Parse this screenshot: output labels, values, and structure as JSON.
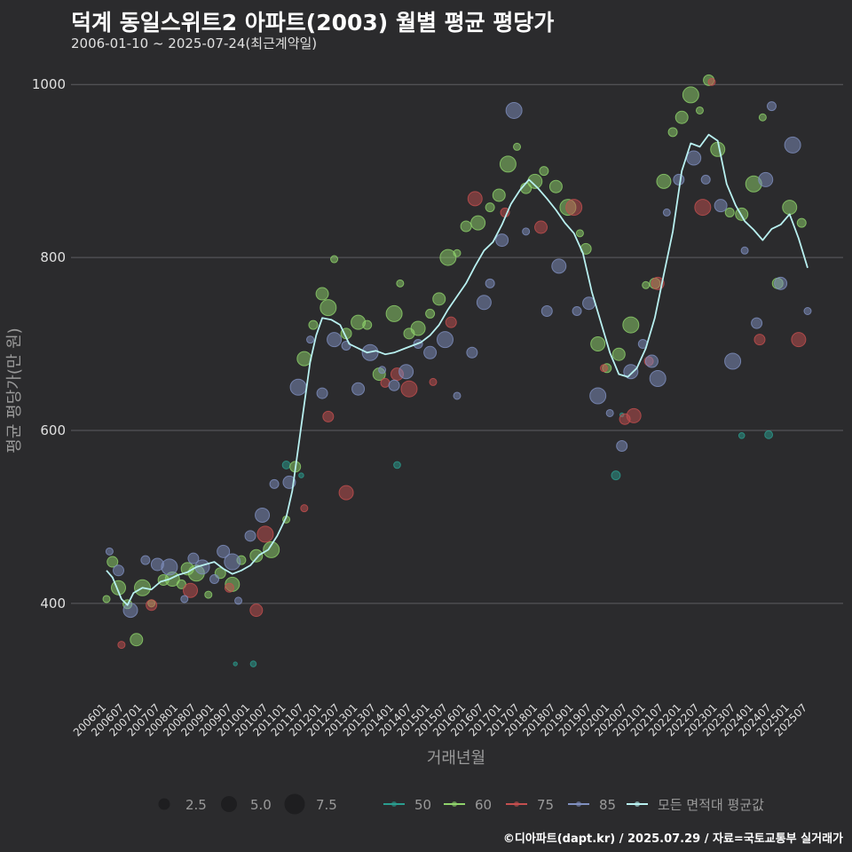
{
  "header": {
    "title": "덕계 동일스위트2 아파트(2003) 월별 평균 평당가",
    "subtitle": "2006-01-10 ~ 2025-07-24(최근계약일)"
  },
  "footer": {
    "credit": "©디아파트(dapt.kr) / 2025.07.29 / 자료=국토교통부 실거래가"
  },
  "colors": {
    "background": "#2b2b2d",
    "grid": "#5e5e62",
    "avg_line": "#b8f0f0",
    "s50": "#2a9d8f",
    "s60": "#8fd36b",
    "s75": "#c44f4f",
    "s85": "#8090c0"
  },
  "chart_data": {
    "type": "scatter",
    "title": "덕계 동일스위트2 아파트(2003) 월별 평균 평당가",
    "subtitle": "2006-01-10 ~ 2025-07-24(최근계약일)",
    "xlabel": "거래년월",
    "ylabel": "평균 평당가(만 원)",
    "ylim": [
      290,
      1030
    ],
    "yticks": [
      400,
      600,
      800,
      1000
    ],
    "xlim": [
      "2006-01",
      "2025-07"
    ],
    "xticks": [
      "200601",
      "200607",
      "200701",
      "200707",
      "200801",
      "200807",
      "200901",
      "200907",
      "201001",
      "201007",
      "201101",
      "201107",
      "201201",
      "201207",
      "201301",
      "201307",
      "201401",
      "201407",
      "201501",
      "201507",
      "201601",
      "201607",
      "201701",
      "201707",
      "201801",
      "201807",
      "201901",
      "201907",
      "202001",
      "202007",
      "202101",
      "202107",
      "202201",
      "202207",
      "202301",
      "202307",
      "202401",
      "202407",
      "202501",
      "202507"
    ],
    "grid": "horizontal",
    "size_legend": {
      "values": [
        "2.5",
        "5.0",
        "7.5"
      ]
    },
    "legend": {
      "position": "bottom",
      "items": [
        "50",
        "60",
        "75",
        "85",
        "모든 면적대 평균값"
      ]
    },
    "average_line": {
      "name": "모든 면적대 평균값",
      "points": [
        [
          "2006-01",
          438
        ],
        [
          "2006-03",
          430
        ],
        [
          "2006-06",
          405
        ],
        [
          "2006-08",
          398
        ],
        [
          "2006-10",
          412
        ],
        [
          "2007-01",
          418
        ],
        [
          "2007-04",
          416
        ],
        [
          "2007-07",
          425
        ],
        [
          "2007-10",
          428
        ],
        [
          "2008-01",
          433
        ],
        [
          "2008-04",
          436
        ],
        [
          "2008-07",
          442
        ],
        [
          "2008-10",
          445
        ],
        [
          "2009-01",
          448
        ],
        [
          "2009-04",
          440
        ],
        [
          "2009-07",
          434
        ],
        [
          "2009-10",
          438
        ],
        [
          "2010-01",
          444
        ],
        [
          "2010-04",
          456
        ],
        [
          "2010-07",
          462
        ],
        [
          "2010-10",
          478
        ],
        [
          "2011-01",
          500
        ],
        [
          "2011-03",
          530
        ],
        [
          "2011-05",
          580
        ],
        [
          "2011-07",
          630
        ],
        [
          "2011-09",
          680
        ],
        [
          "2011-11",
          710
        ],
        [
          "2012-01",
          730
        ],
        [
          "2012-04",
          728
        ],
        [
          "2012-07",
          722
        ],
        [
          "2012-10",
          700
        ],
        [
          "2013-01",
          695
        ],
        [
          "2013-04",
          690
        ],
        [
          "2013-07",
          692
        ],
        [
          "2013-10",
          688
        ],
        [
          "2014-01",
          690
        ],
        [
          "2014-04",
          694
        ],
        [
          "2014-07",
          698
        ],
        [
          "2014-10",
          702
        ],
        [
          "2015-01",
          710
        ],
        [
          "2015-04",
          722
        ],
        [
          "2015-07",
          740
        ],
        [
          "2015-10",
          755
        ],
        [
          "2016-01",
          770
        ],
        [
          "2016-04",
          790
        ],
        [
          "2016-07",
          808
        ],
        [
          "2016-10",
          818
        ],
        [
          "2017-01",
          838
        ],
        [
          "2017-04",
          862
        ],
        [
          "2017-07",
          878
        ],
        [
          "2017-10",
          890
        ],
        [
          "2018-01",
          880
        ],
        [
          "2018-04",
          868
        ],
        [
          "2018-07",
          855
        ],
        [
          "2018-10",
          840
        ],
        [
          "2019-01",
          828
        ],
        [
          "2019-04",
          805
        ],
        [
          "2019-07",
          760
        ],
        [
          "2019-10",
          725
        ],
        [
          "2020-01",
          690
        ],
        [
          "2020-04",
          665
        ],
        [
          "2020-07",
          662
        ],
        [
          "2020-10",
          672
        ],
        [
          "2021-01",
          695
        ],
        [
          "2021-04",
          730
        ],
        [
          "2021-07",
          780
        ],
        [
          "2021-10",
          830
        ],
        [
          "2022-01",
          900
        ],
        [
          "2022-04",
          932
        ],
        [
          "2022-07",
          928
        ],
        [
          "2022-10",
          942
        ],
        [
          "2023-01",
          935
        ],
        [
          "2023-04",
          885
        ],
        [
          "2023-07",
          860
        ],
        [
          "2023-10",
          842
        ],
        [
          "2024-01",
          832
        ],
        [
          "2024-04",
          820
        ],
        [
          "2024-07",
          833
        ],
        [
          "2024-10",
          838
        ],
        [
          "2025-01",
          850
        ],
        [
          "2025-04",
          822
        ],
        [
          "2025-07",
          788
        ]
      ]
    },
    "series": [
      {
        "name": "50",
        "points": [
          [
            "2009-08",
            330
          ],
          [
            "2010-02",
            330
          ],
          [
            "2011-01",
            560
          ],
          [
            "2011-06",
            548
          ],
          [
            "2014-02",
            560
          ],
          [
            "2020-03",
            548
          ],
          [
            "2020-05",
            618
          ],
          [
            "2023-09",
            594
          ],
          [
            "2024-06",
            595
          ]
        ]
      },
      {
        "name": "60",
        "points": [
          [
            "2006-01",
            405
          ],
          [
            "2006-03",
            448
          ],
          [
            "2006-05",
            418
          ],
          [
            "2006-08",
            399
          ],
          [
            "2006-11",
            358
          ],
          [
            "2007-01",
            418
          ],
          [
            "2007-04",
            400
          ],
          [
            "2007-08",
            427
          ],
          [
            "2007-11",
            428
          ],
          [
            "2008-02",
            422
          ],
          [
            "2008-04",
            440
          ],
          [
            "2008-07",
            435
          ],
          [
            "2008-11",
            410
          ],
          [
            "2009-03",
            435
          ],
          [
            "2009-07",
            422
          ],
          [
            "2009-10",
            450
          ],
          [
            "2010-03",
            455
          ],
          [
            "2010-08",
            462
          ],
          [
            "2011-01",
            497
          ],
          [
            "2011-04",
            558
          ],
          [
            "2011-07",
            683
          ],
          [
            "2011-10",
            722
          ],
          [
            "2012-01",
            758
          ],
          [
            "2012-03",
            742
          ],
          [
            "2012-05",
            798
          ],
          [
            "2012-09",
            712
          ],
          [
            "2013-01",
            725
          ],
          [
            "2013-04",
            722
          ],
          [
            "2013-08",
            665
          ],
          [
            "2014-01",
            735
          ],
          [
            "2014-03",
            770
          ],
          [
            "2014-06",
            712
          ],
          [
            "2014-09",
            718
          ],
          [
            "2015-01",
            735
          ],
          [
            "2015-04",
            752
          ],
          [
            "2015-07",
            800
          ],
          [
            "2015-10",
            805
          ],
          [
            "2016-01",
            836
          ],
          [
            "2016-05",
            840
          ],
          [
            "2016-09",
            858
          ],
          [
            "2016-12",
            872
          ],
          [
            "2017-03",
            908
          ],
          [
            "2017-06",
            928
          ],
          [
            "2017-09",
            880
          ],
          [
            "2017-12",
            888
          ],
          [
            "2018-03",
            900
          ],
          [
            "2018-07",
            882
          ],
          [
            "2018-11",
            858
          ],
          [
            "2019-03",
            828
          ],
          [
            "2019-05",
            810
          ],
          [
            "2019-09",
            700
          ],
          [
            "2019-12",
            672
          ],
          [
            "2020-04",
            688
          ],
          [
            "2020-08",
            722
          ],
          [
            "2021-01",
            768
          ],
          [
            "2021-04",
            770
          ],
          [
            "2021-07",
            888
          ],
          [
            "2021-10",
            945
          ],
          [
            "2022-01",
            962
          ],
          [
            "2022-04",
            988
          ],
          [
            "2022-07",
            970
          ],
          [
            "2022-10",
            1005
          ],
          [
            "2023-01",
            925
          ],
          [
            "2023-05",
            852
          ],
          [
            "2023-09",
            850
          ],
          [
            "2024-01",
            885
          ],
          [
            "2024-04",
            962
          ],
          [
            "2024-09",
            770
          ],
          [
            "2025-01",
            858
          ],
          [
            "2025-05",
            840
          ]
        ]
      },
      {
        "name": "75",
        "points": [
          [
            "2006-06",
            352
          ],
          [
            "2007-04",
            398
          ],
          [
            "2008-05",
            415
          ],
          [
            "2009-06",
            418
          ],
          [
            "2010-03",
            392
          ],
          [
            "2010-06",
            480
          ],
          [
            "2011-07",
            510
          ],
          [
            "2012-03",
            616
          ],
          [
            "2012-09",
            528
          ],
          [
            "2013-10",
            655
          ],
          [
            "2014-02",
            665
          ],
          [
            "2014-06",
            648
          ],
          [
            "2015-02",
            656
          ],
          [
            "2015-08",
            725
          ],
          [
            "2016-04",
            868
          ],
          [
            "2017-02",
            852
          ],
          [
            "2018-02",
            835
          ],
          [
            "2019-01",
            858
          ],
          [
            "2019-11",
            672
          ],
          [
            "2020-06",
            613
          ],
          [
            "2020-09",
            617
          ],
          [
            "2021-02",
            680
          ],
          [
            "2021-05",
            770
          ],
          [
            "2022-08",
            858
          ],
          [
            "2022-11",
            1003
          ],
          [
            "2024-03",
            705
          ],
          [
            "2025-04",
            705
          ]
        ]
      },
      {
        "name": "85",
        "points": [
          [
            "2006-02",
            460
          ],
          [
            "2006-05",
            438
          ],
          [
            "2006-09",
            392
          ],
          [
            "2007-02",
            450
          ],
          [
            "2007-06",
            445
          ],
          [
            "2007-10",
            442
          ],
          [
            "2008-03",
            405
          ],
          [
            "2008-06",
            452
          ],
          [
            "2008-09",
            442
          ],
          [
            "2009-01",
            428
          ],
          [
            "2009-04",
            460
          ],
          [
            "2009-07",
            448
          ],
          [
            "2009-09",
            403
          ],
          [
            "2010-01",
            478
          ],
          [
            "2010-05",
            502
          ],
          [
            "2010-09",
            538
          ],
          [
            "2011-02",
            540
          ],
          [
            "2011-05",
            650
          ],
          [
            "2011-09",
            705
          ],
          [
            "2012-01",
            643
          ],
          [
            "2012-05",
            705
          ],
          [
            "2012-09",
            698
          ],
          [
            "2013-01",
            648
          ],
          [
            "2013-05",
            690
          ],
          [
            "2013-09",
            670
          ],
          [
            "2014-01",
            652
          ],
          [
            "2014-05",
            668
          ],
          [
            "2014-09",
            700
          ],
          [
            "2015-01",
            690
          ],
          [
            "2015-06",
            705
          ],
          [
            "2015-10",
            640
          ],
          [
            "2016-03",
            690
          ],
          [
            "2016-07",
            748
          ],
          [
            "2016-09",
            770
          ],
          [
            "2017-01",
            820
          ],
          [
            "2017-05",
            970
          ],
          [
            "2017-09",
            830
          ],
          [
            "2018-04",
            738
          ],
          [
            "2018-08",
            790
          ],
          [
            "2019-02",
            738
          ],
          [
            "2019-06",
            747
          ],
          [
            "2019-09",
            640
          ],
          [
            "2020-01",
            620
          ],
          [
            "2020-05",
            582
          ],
          [
            "2020-08",
            668
          ],
          [
            "2020-12",
            700
          ],
          [
            "2021-03",
            680
          ],
          [
            "2021-05",
            660
          ],
          [
            "2021-08",
            852
          ],
          [
            "2021-12",
            890
          ],
          [
            "2022-05",
            915
          ],
          [
            "2022-09",
            890
          ],
          [
            "2023-02",
            860
          ],
          [
            "2023-06",
            680
          ],
          [
            "2023-10",
            808
          ],
          [
            "2024-02",
            724
          ],
          [
            "2024-05",
            890
          ],
          [
            "2024-07",
            975
          ],
          [
            "2024-10",
            770
          ],
          [
            "2025-02",
            930
          ],
          [
            "2025-07",
            738
          ]
        ]
      }
    ]
  }
}
